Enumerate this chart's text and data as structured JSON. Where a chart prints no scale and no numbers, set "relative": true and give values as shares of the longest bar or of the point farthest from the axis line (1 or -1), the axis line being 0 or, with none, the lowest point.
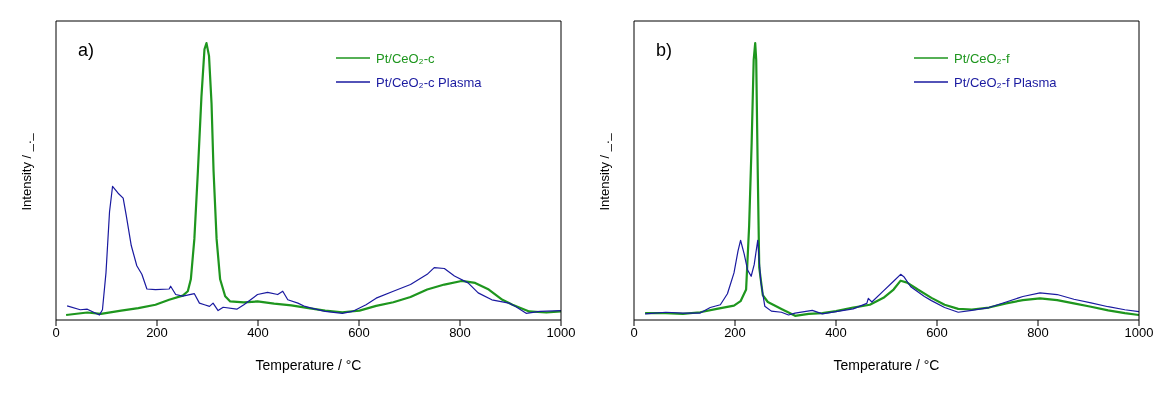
{
  "chart_data": [
    {
      "type": "line",
      "relative": true,
      "annotations": [
        "a)"
      ],
      "xlabel": "Temperature / °C",
      "ylabel": "Intensity / _._",
      "xlim": [
        0,
        1000
      ],
      "xticks": [
        0,
        200,
        400,
        600,
        800,
        1000
      ],
      "legend": "top right",
      "series": [
        {
          "name": "Pt/CeO₂-c",
          "color": "#1e961e",
          "x": [
            20,
            62,
            89,
            129,
            163,
            197,
            224,
            251,
            261,
            267,
            274,
            281,
            288,
            294,
            298,
            303,
            308,
            312,
            318,
            325,
            335,
            345,
            372,
            399,
            432,
            466,
            500,
            533,
            567,
            601,
            634,
            668,
            702,
            735,
            769,
            803,
            830,
            857,
            884,
            904,
            937,
            971,
            1000
          ],
          "values": [
            0.018,
            0.027,
            0.022,
            0.034,
            0.043,
            0.055,
            0.073,
            0.088,
            0.104,
            0.147,
            0.293,
            0.538,
            0.807,
            0.978,
            1,
            0.954,
            0.782,
            0.538,
            0.293,
            0.147,
            0.086,
            0.067,
            0.064,
            0.067,
            0.059,
            0.053,
            0.043,
            0.034,
            0.028,
            0.034,
            0.051,
            0.064,
            0.083,
            0.11,
            0.128,
            0.141,
            0.134,
            0.11,
            0.073,
            0.055,
            0.031,
            0.027,
            0.031
          ]
        },
        {
          "name": "Pt/CeO₂-c Plasma",
          "color": "#1a1aa0",
          "x": [
            22,
            48,
            62,
            86,
            92,
            99,
            106,
            112,
            123,
            133,
            139,
            149,
            160,
            170,
            180,
            197,
            224,
            227,
            237,
            251,
            274,
            284,
            294,
            304,
            311,
            321,
            331,
            358,
            372,
            399,
            419,
            439,
            449,
            459,
            479,
            493,
            506,
            533,
            567,
            587,
            614,
            634,
            668,
            702,
            735,
            749,
            769,
            789,
            816,
            836,
            863,
            897,
            910,
            931,
            958,
            1000
          ],
          "values": [
            0.051,
            0.037,
            0.039,
            0.018,
            0.037,
            0.171,
            0.391,
            0.483,
            0.458,
            0.44,
            0.379,
            0.269,
            0.196,
            0.165,
            0.112,
            0.11,
            0.112,
            0.122,
            0.092,
            0.086,
            0.095,
            0.061,
            0.055,
            0.049,
            0.061,
            0.034,
            0.046,
            0.039,
            0.055,
            0.092,
            0.1,
            0.092,
            0.104,
            0.073,
            0.061,
            0.049,
            0.043,
            0.031,
            0.024,
            0.031,
            0.055,
            0.079,
            0.104,
            0.128,
            0.165,
            0.189,
            0.186,
            0.159,
            0.134,
            0.098,
            0.073,
            0.061,
            0.049,
            0.024,
            0.031,
            0.034
          ]
        }
      ]
    },
    {
      "type": "line",
      "relative": true,
      "annotations": [
        "b)"
      ],
      "xlabel": "Temperature / °C",
      "ylabel": "Intensity / _._",
      "xlim": [
        0,
        1000
      ],
      "xticks": [
        0,
        200,
        400,
        600,
        800,
        1000
      ],
      "legend": "top right",
      "series": [
        {
          "name": "Pt/CeO₂-f",
          "color": "#1e961e",
          "x": [
            22,
            63,
            97,
            131,
            164,
            198,
            211,
            222,
            228,
            233,
            237,
            240,
            242,
            245,
            248,
            255,
            265,
            292,
            319,
            346,
            373,
            400,
            434,
            467,
            494,
            514,
            528,
            541,
            562,
            589,
            615,
            642,
            669,
            703,
            737,
            770,
            804,
            838,
            871,
            905,
            939,
            972,
            1000
          ],
          "values": [
            0.025,
            0.025,
            0.022,
            0.028,
            0.04,
            0.052,
            0.068,
            0.11,
            0.34,
            0.64,
            0.94,
            1,
            0.94,
            0.54,
            0.19,
            0.09,
            0.065,
            0.04,
            0.015,
            0.022,
            0.025,
            0.032,
            0.045,
            0.055,
            0.08,
            0.11,
            0.142,
            0.135,
            0.11,
            0.08,
            0.055,
            0.04,
            0.038,
            0.045,
            0.06,
            0.072,
            0.078,
            0.072,
            0.06,
            0.048,
            0.035,
            0.025,
            0.018
          ]
        },
        {
          "name": "Pt/CeO₂-f Plasma",
          "color": "#1a1aa0",
          "x": [
            22,
            63,
            97,
            131,
            151,
            171,
            185,
            198,
            206,
            211,
            218,
            225,
            232,
            238,
            245,
            251,
            259,
            272,
            292,
            306,
            319,
            353,
            373,
            400,
            434,
            461,
            464,
            471,
            494,
            514,
            528,
            535,
            548,
            575,
            589,
            615,
            642,
            669,
            703,
            737,
            770,
            804,
            838,
            871,
            905,
            939,
            972,
            1000
          ],
          "values": [
            0.022,
            0.028,
            0.025,
            0.025,
            0.045,
            0.055,
            0.095,
            0.17,
            0.25,
            0.288,
            0.24,
            0.18,
            0.158,
            0.2,
            0.288,
            0.14,
            0.05,
            0.032,
            0.028,
            0.018,
            0.025,
            0.035,
            0.022,
            0.03,
            0.04,
            0.06,
            0.078,
            0.065,
            0.105,
            0.14,
            0.165,
            0.155,
            0.12,
            0.085,
            0.07,
            0.045,
            0.028,
            0.035,
            0.045,
            0.065,
            0.085,
            0.098,
            0.092,
            0.075,
            0.062,
            0.048,
            0.037,
            0.03
          ]
        }
      ]
    }
  ]
}
